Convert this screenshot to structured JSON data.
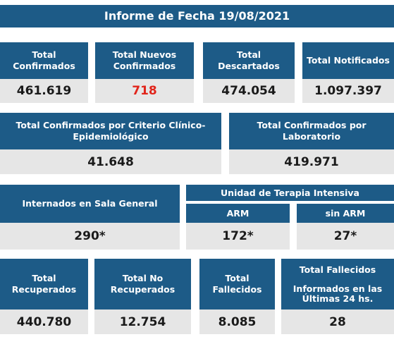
{
  "title": "Informe de Fecha 19/08/2021",
  "row1": [
    {
      "label": "Total\nConfirmados",
      "value": "461.619"
    },
    {
      "label": "Total Nuevos\nConfirmados",
      "value": "718"
    },
    {
      "label": "Total\nDescartados",
      "value": "474.054"
    },
    {
      "label": "Total Notificados",
      "value": "1.097.397"
    }
  ],
  "row2": [
    {
      "label": "Total Confirmados por Criterio Clínico-\nEpidemiológico",
      "value": "41.648"
    },
    {
      "label": "Total Confirmados por\nLaboratorio",
      "value": "419.971"
    }
  ],
  "row3": {
    "sala_label": "Internados en Sala General",
    "sala_value": "290*",
    "uti_label": "Unidad de Terapia Intensiva",
    "arm_label": "ARM",
    "arm_value": "172*",
    "sin_arm_label": "sin ARM",
    "sin_arm_value": "27*"
  },
  "row4": [
    {
      "label": "Total\nRecuperados",
      "value": "440.780"
    },
    {
      "label": "Total No\nRecuperados",
      "value": "12.754"
    },
    {
      "label": "Total\nFallecidos",
      "value": "8.085"
    },
    {
      "label": "Total Fallecidos\n\nInformados en las\nÚltimas 24 hs.",
      "value": "28"
    }
  ],
  "colors": {
    "header_bg": "#1d5b87",
    "value_bg": "#e6e6e6",
    "highlight": "#e1251b"
  }
}
